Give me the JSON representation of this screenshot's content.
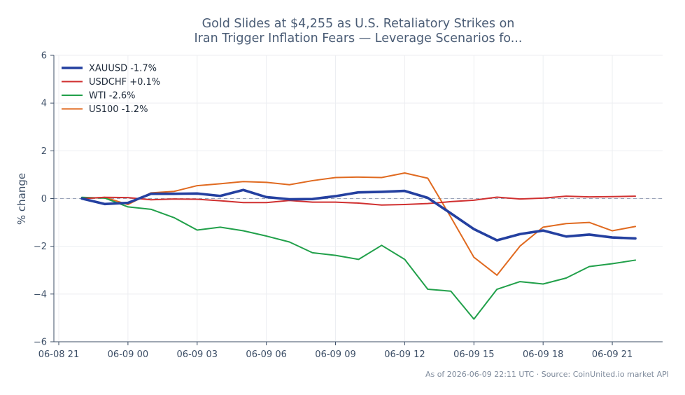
{
  "chart_data": {
    "type": "line",
    "title_lines": [
      "Gold Slides at $4,255 as U.S. Retaliatory Strikes on",
      "Iran Trigger Inflation Fears — Leverage Scenarios fo..."
    ],
    "xlabel": "",
    "ylabel": "% change",
    "ylim": [
      -6,
      6
    ],
    "yticks": [
      -6,
      -4,
      -2,
      0,
      2,
      4,
      6
    ],
    "ytick_labels": [
      "−6",
      "−4",
      "−2",
      "0",
      "2",
      "4",
      "6"
    ],
    "x_start": "2026-06-08 21:00",
    "x_range": [
      "2026-06-08 21:00",
      "2026-06-09 23:00"
    ],
    "x": [
      "2026-06-08 22:00",
      "2026-06-08 23:00",
      "2026-06-09 00:00",
      "2026-06-09 01:00",
      "2026-06-09 02:00",
      "2026-06-09 03:00",
      "2026-06-09 04:00",
      "2026-06-09 05:00",
      "2026-06-09 06:00",
      "2026-06-09 07:00",
      "2026-06-09 08:00",
      "2026-06-09 09:00",
      "2026-06-09 10:00",
      "2026-06-09 11:00",
      "2026-06-09 12:00",
      "2026-06-09 13:00",
      "2026-06-09 14:00",
      "2026-06-09 15:00",
      "2026-06-09 16:00",
      "2026-06-09 17:00",
      "2026-06-09 18:00",
      "2026-06-09 19:00",
      "2026-06-09 20:00",
      "2026-06-09 21:00",
      "2026-06-09 22:00"
    ],
    "xticks": [
      "2026-06-08 21:00",
      "2026-06-09 00:00",
      "2026-06-09 03:00",
      "2026-06-09 06:00",
      "2026-06-09 09:00",
      "2026-06-09 12:00",
      "2026-06-09 15:00",
      "2026-06-09 18:00",
      "2026-06-09 21:00"
    ],
    "xtick_labels": [
      "06-08 21",
      "06-09 00",
      "06-09 03",
      "06-09 06",
      "06-09 09",
      "06-09 12",
      "06-09 15",
      "06-09 18",
      "06-09 21"
    ],
    "series": [
      {
        "name": "XAUUSD -1.7%",
        "color": "#2440a0",
        "values": [
          0.0,
          -0.23,
          -0.18,
          0.2,
          0.2,
          0.21,
          0.11,
          0.36,
          0.06,
          -0.03,
          -0.02,
          0.1,
          0.26,
          0.28,
          0.32,
          0.03,
          -0.62,
          -1.28,
          -1.75,
          -1.49,
          -1.34,
          -1.59,
          -1.51,
          -1.63,
          -1.67
        ]
      },
      {
        "name": "USDCHF +0.1%",
        "color": "#d03030",
        "values": [
          0.0,
          0.05,
          0.04,
          -0.05,
          -0.02,
          -0.03,
          -0.09,
          -0.17,
          -0.17,
          -0.08,
          -0.15,
          -0.15,
          -0.19,
          -0.27,
          -0.25,
          -0.21,
          -0.13,
          -0.07,
          0.06,
          -0.02,
          0.02,
          0.1,
          0.07,
          0.08,
          0.1
        ]
      },
      {
        "name": "WTI -2.6%",
        "color": "#21a04a",
        "values": [
          0.05,
          0.02,
          -0.35,
          -0.45,
          -0.8,
          -1.32,
          -1.2,
          -1.35,
          -1.57,
          -1.82,
          -2.27,
          -2.38,
          -2.55,
          -1.96,
          -2.55,
          -3.8,
          -3.88,
          -5.05,
          -3.8,
          -3.48,
          -3.58,
          -3.33,
          -2.85,
          -2.73,
          -2.58
        ]
      },
      {
        "name": "US100 -1.2%",
        "color": "#e06a20",
        "values": [
          0.0,
          0.05,
          -0.25,
          0.24,
          0.3,
          0.54,
          0.62,
          0.71,
          0.68,
          0.58,
          0.75,
          0.88,
          0.9,
          0.88,
          1.07,
          0.85,
          -0.78,
          -2.46,
          -3.21,
          -1.99,
          -1.2,
          -1.05,
          -1.0,
          -1.35,
          -1.17
        ]
      }
    ],
    "zero_line": true,
    "grid": true,
    "legend_position": "top-left"
  },
  "footer": "As of 2026-06-09 22:11 UTC · Source: CoinUnited.io market API"
}
